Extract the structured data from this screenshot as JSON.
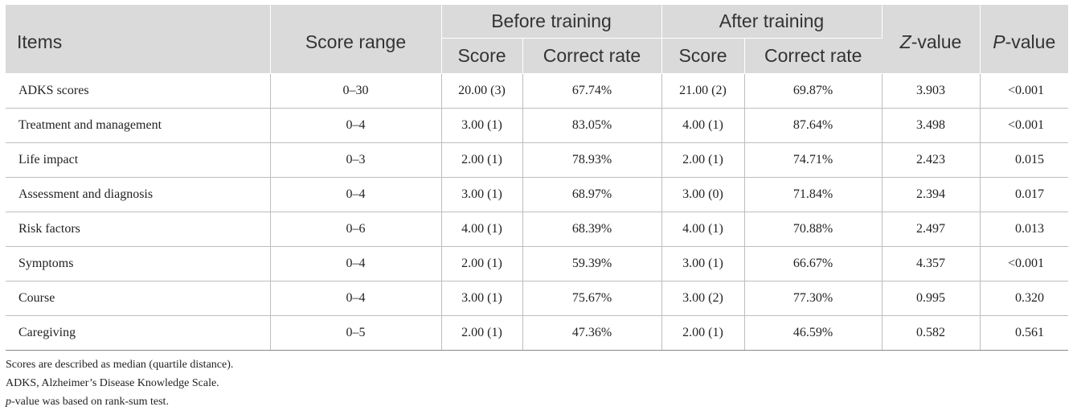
{
  "header": {
    "items": "Items",
    "score_range": "Score range",
    "before_training": "Before training",
    "after_training": "After training",
    "z_value_italic": "Z",
    "z_value_rest": "-value",
    "p_value_italic": "P",
    "p_value_rest": "-value",
    "score": "Score",
    "correct_rate": "Correct rate"
  },
  "rows": [
    {
      "item": "ADKS scores",
      "range": "0–30",
      "b_score": "20.00 (3)",
      "b_rate": "67.74%",
      "a_score": "21.00 (2)",
      "a_rate": "69.87%",
      "z": "3.903",
      "p": "<0.001"
    },
    {
      "item": "Treatment and management",
      "range": "0–4",
      "b_score": "3.00 (1)",
      "b_rate": "83.05%",
      "a_score": "4.00 (1)",
      "a_rate": "87.64%",
      "z": "3.498",
      "p": "<0.001"
    },
    {
      "item": "Life impact",
      "range": "0–3",
      "b_score": "2.00 (1)",
      "b_rate": "78.93%",
      "a_score": "2.00 (1)",
      "a_rate": "74.71%",
      "z": "2.423",
      "p": "0.015"
    },
    {
      "item": "Assessment and diagnosis",
      "range": "0–4",
      "b_score": "3.00 (1)",
      "b_rate": "68.97%",
      "a_score": "3.00 (0)",
      "a_rate": "71.84%",
      "z": "2.394",
      "p": "0.017"
    },
    {
      "item": "Risk factors",
      "range": "0–6",
      "b_score": "4.00 (1)",
      "b_rate": "68.39%",
      "a_score": "4.00 (1)",
      "a_rate": "70.88%",
      "z": "2.497",
      "p": "0.013"
    },
    {
      "item": "Symptoms",
      "range": "0–4",
      "b_score": "2.00 (1)",
      "b_rate": "59.39%",
      "a_score": "3.00 (1)",
      "a_rate": "66.67%",
      "z": "4.357",
      "p": "<0.001"
    },
    {
      "item": "Course",
      "range": "0–4",
      "b_score": "3.00 (1)",
      "b_rate": "75.67%",
      "a_score": "3.00 (2)",
      "a_rate": "77.30%",
      "z": "0.995",
      "p": "0.320"
    },
    {
      "item": "Caregiving",
      "range": "0–5",
      "b_score": "2.00 (1)",
      "b_rate": "47.36%",
      "a_score": "2.00 (1)",
      "a_rate": "46.59%",
      "z": "0.582",
      "p": "0.561"
    }
  ],
  "notes": {
    "line1": "Scores are described as median (quartile distance).",
    "line2": "ADKS, Alzheimer’s Disease Knowledge Scale.",
    "line3_italic": "p",
    "line3_rest": "-value was based on rank-sum test."
  }
}
